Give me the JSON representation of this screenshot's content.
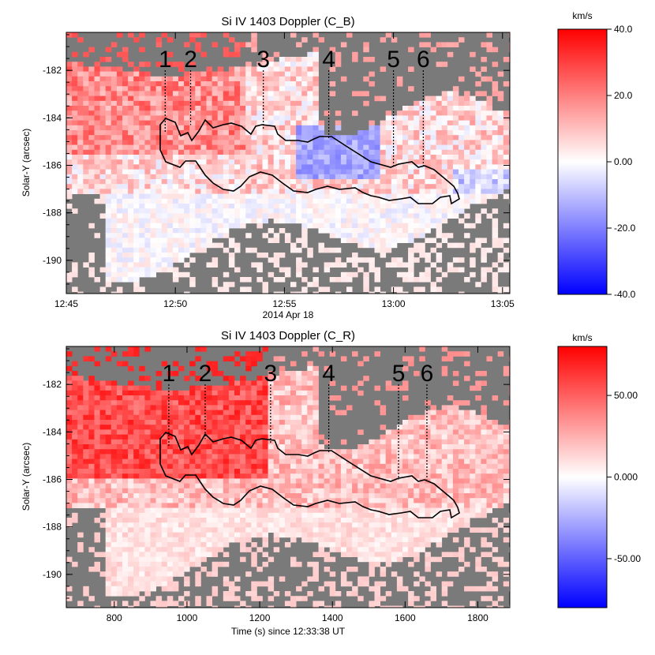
{
  "chart_data": [
    {
      "type": "heatmap",
      "title": "Si IV 1403 Doppler (C_B)",
      "xlabel": "2014 Apr 18",
      "ylabel": "Solar-Y (arcsec)",
      "x_ticks": [
        "12:45",
        "12:50",
        "12:55",
        "13:00",
        "13:05"
      ],
      "x_tick_values": [
        668,
        968,
        1268,
        1568,
        1868
      ],
      "xlim": [
        668,
        1888
      ],
      "ylim": [
        -191.4,
        -180.4
      ],
      "y_ticks": [
        -182,
        -184,
        -186,
        -188,
        -190
      ],
      "colorbar": {
        "unit": "km/s",
        "range": [
          -40,
          40
        ],
        "ticks": [
          "40.0",
          "20.0",
          "0.00",
          "-20.0",
          "-40.0"
        ],
        "tick_values": [
          40,
          20,
          0,
          -20,
          -40
        ]
      },
      "events": [
        {
          "label": "1",
          "x": 940,
          "y_line_end": -184.6
        },
        {
          "label": "2",
          "x": 1010,
          "y_line_end": -184.3
        },
        {
          "label": "3",
          "x": 1210,
          "y_line_end": -184.5
        },
        {
          "label": "4",
          "x": 1390,
          "y_line_end": -184.9
        },
        {
          "label": "5",
          "x": 1568,
          "y_line_end": -186.0
        },
        {
          "label": "6",
          "x": 1650,
          "y_line_end": -186.0
        }
      ]
    },
    {
      "type": "heatmap",
      "title": "Si IV 1403 Doppler (C_R)",
      "xlabel": "Time (s) since 12:33:38 UT",
      "ylabel": "Solar-Y (arcsec)",
      "x_ticks": [
        "800",
        "1000",
        "1200",
        "1400",
        "1600",
        "1800"
      ],
      "x_tick_values": [
        800,
        1000,
        1200,
        1400,
        1600,
        1800
      ],
      "xlim": [
        668,
        1888
      ],
      "ylim": [
        -191.4,
        -180.4
      ],
      "y_ticks": [
        -182,
        -184,
        -186,
        -188,
        -190
      ],
      "colorbar": {
        "unit": "km/s",
        "range": [
          -80,
          80
        ],
        "ticks": [
          "50.00",
          "0.000",
          "-50.00"
        ],
        "tick_values": [
          50,
          0,
          -50
        ]
      },
      "events": [
        {
          "label": "1",
          "x": 950,
          "y_line_end": -184.6
        },
        {
          "label": "2",
          "x": 1050,
          "y_line_end": -184.3
        },
        {
          "label": "3",
          "x": 1230,
          "y_line_end": -184.5
        },
        {
          "label": "4",
          "x": 1390,
          "y_line_end": -184.9
        },
        {
          "label": "5",
          "x": 1582,
          "y_line_end": -186.0
        },
        {
          "label": "6",
          "x": 1660,
          "y_line_end": -186.0
        }
      ]
    }
  ],
  "colors": {
    "missing": "#7a7a7a",
    "positive": "#ff0000",
    "negative": "#0000ff",
    "zero": "#ffffff",
    "contour": "#000000"
  }
}
